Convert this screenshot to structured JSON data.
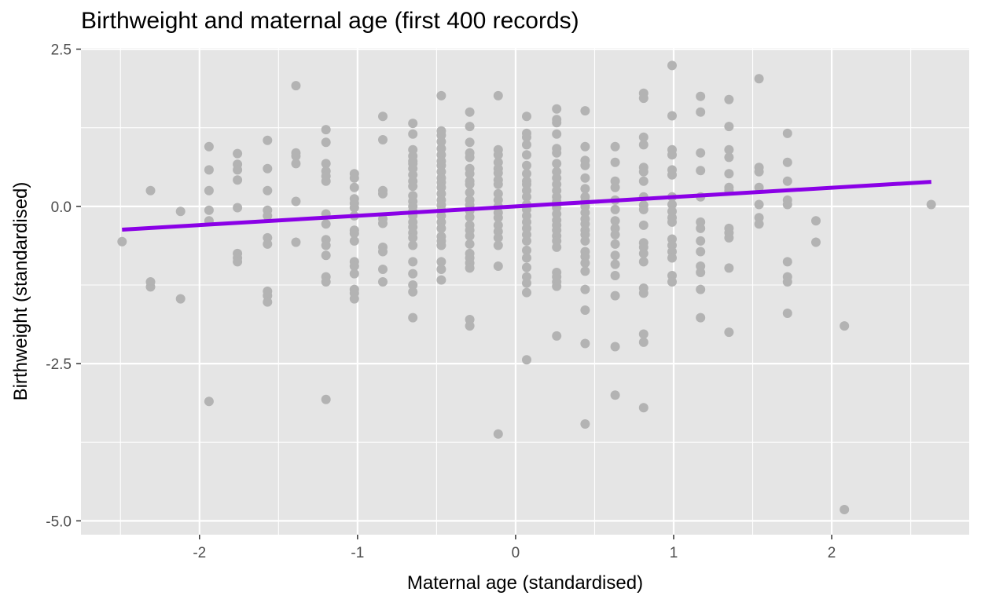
{
  "chart_data": {
    "type": "scatter",
    "title": "Birthweight and maternal age (first 400 records)",
    "xlabel": "Maternal age (standardised)",
    "ylabel": "Birthweight (standardised)",
    "xlim": [
      -2.75,
      2.87
    ],
    "ylim": [
      -5.22,
      2.52
    ],
    "x_ticks": [
      -2,
      -1,
      0,
      1,
      2
    ],
    "x_tick_labels": [
      "-2",
      "-1",
      "0",
      "1",
      "2"
    ],
    "y_ticks": [
      -5.0,
      -2.5,
      0.0,
      2.5
    ],
    "y_tick_labels": [
      "-5.0",
      "-2.5",
      "0.0",
      "2.5"
    ],
    "grid": true,
    "background": "#e5e5e5",
    "grid_color": "#ffffff",
    "point_color": "#b3b3b3",
    "fit_line": {
      "x": [
        -2.49,
        2.63
      ],
      "y": [
        -0.37,
        0.39
      ],
      "color": "#8a00e6"
    },
    "points": [
      [
        -2.49,
        -0.56
      ],
      [
        -2.31,
        0.25
      ],
      [
        -2.31,
        -1.2
      ],
      [
        -2.31,
        -1.28
      ],
      [
        -2.12,
        -0.08
      ],
      [
        -2.12,
        -1.47
      ],
      [
        -1.94,
        0.95
      ],
      [
        -1.94,
        0.58
      ],
      [
        -1.94,
        0.25
      ],
      [
        -1.94,
        -0.06
      ],
      [
        -1.94,
        -0.23
      ],
      [
        -1.94,
        -3.1
      ],
      [
        -1.76,
        0.84
      ],
      [
        -1.76,
        0.67
      ],
      [
        -1.76,
        0.58
      ],
      [
        -1.76,
        0.42
      ],
      [
        -1.76,
        -0.02
      ],
      [
        -1.76,
        -0.75
      ],
      [
        -1.76,
        -0.82
      ],
      [
        -1.76,
        -0.88
      ],
      [
        -1.57,
        1.05
      ],
      [
        -1.57,
        0.6
      ],
      [
        -1.57,
        0.25
      ],
      [
        -1.57,
        -0.06
      ],
      [
        -1.57,
        -0.15
      ],
      [
        -1.57,
        -0.5
      ],
      [
        -1.57,
        -0.6
      ],
      [
        -1.57,
        -1.35
      ],
      [
        -1.57,
        -1.42
      ],
      [
        -1.57,
        -1.52
      ],
      [
        -1.39,
        1.92
      ],
      [
        -1.39,
        0.85
      ],
      [
        -1.39,
        0.8
      ],
      [
        -1.39,
        0.68
      ],
      [
        -1.39,
        0.08
      ],
      [
        -1.39,
        -0.57
      ],
      [
        -1.2,
        1.22
      ],
      [
        -1.2,
        1.02
      ],
      [
        -1.2,
        0.68
      ],
      [
        -1.2,
        0.56
      ],
      [
        -1.2,
        0.48
      ],
      [
        -1.2,
        0.4
      ],
      [
        -1.2,
        -0.12
      ],
      [
        -1.2,
        -0.28
      ],
      [
        -1.2,
        -0.53
      ],
      [
        -1.2,
        -0.62
      ],
      [
        -1.2,
        -0.78
      ],
      [
        -1.2,
        -1.12
      ],
      [
        -1.2,
        -1.2
      ],
      [
        -1.2,
        -3.07
      ],
      [
        -1.02,
        0.52
      ],
      [
        -1.02,
        0.45
      ],
      [
        -1.02,
        0.3
      ],
      [
        -1.02,
        0.12
      ],
      [
        -1.02,
        0.05
      ],
      [
        -1.02,
        -0.02
      ],
      [
        -1.02,
        -0.15
      ],
      [
        -1.02,
        -0.38
      ],
      [
        -1.02,
        -0.43
      ],
      [
        -1.02,
        -0.55
      ],
      [
        -1.02,
        -0.88
      ],
      [
        -1.02,
        -0.95
      ],
      [
        -1.02,
        -1.07
      ],
      [
        -1.02,
        -1.32
      ],
      [
        -1.02,
        -1.38
      ],
      [
        -1.02,
        -1.47
      ],
      [
        -0.84,
        1.43
      ],
      [
        -0.84,
        1.06
      ],
      [
        -0.84,
        0.25
      ],
      [
        -0.84,
        0.2
      ],
      [
        -0.84,
        -0.2
      ],
      [
        -0.84,
        -0.27
      ],
      [
        -0.84,
        -0.65
      ],
      [
        -0.84,
        -0.72
      ],
      [
        -0.84,
        -1.0
      ],
      [
        -0.84,
        -1.2
      ],
      [
        -0.65,
        1.32
      ],
      [
        -0.65,
        1.15
      ],
      [
        -0.65,
        0.9
      ],
      [
        -0.65,
        0.8
      ],
      [
        -0.65,
        0.72
      ],
      [
        -0.65,
        0.68
      ],
      [
        -0.65,
        0.6
      ],
      [
        -0.65,
        0.5
      ],
      [
        -0.65,
        0.4
      ],
      [
        -0.65,
        0.32
      ],
      [
        -0.65,
        0.17
      ],
      [
        -0.65,
        0.08
      ],
      [
        -0.65,
        0.0
      ],
      [
        -0.65,
        -0.08
      ],
      [
        -0.65,
        -0.15
      ],
      [
        -0.65,
        -0.25
      ],
      [
        -0.65,
        -0.33
      ],
      [
        -0.65,
        -0.42
      ],
      [
        -0.65,
        -0.5
      ],
      [
        -0.65,
        -0.62
      ],
      [
        -0.65,
        -0.88
      ],
      [
        -0.65,
        -1.07
      ],
      [
        -0.65,
        -1.25
      ],
      [
        -0.65,
        -1.36
      ],
      [
        -0.65,
        -1.77
      ],
      [
        -0.47,
        1.76
      ],
      [
        -0.47,
        1.2
      ],
      [
        -0.47,
        1.13
      ],
      [
        -0.47,
        1.03
      ],
      [
        -0.47,
        0.92
      ],
      [
        -0.47,
        0.82
      ],
      [
        -0.47,
        0.72
      ],
      [
        -0.47,
        0.65
      ],
      [
        -0.47,
        0.55
      ],
      [
        -0.47,
        0.45
      ],
      [
        -0.47,
        0.38
      ],
      [
        -0.47,
        0.3
      ],
      [
        -0.47,
        0.2
      ],
      [
        -0.47,
        0.1
      ],
      [
        -0.47,
        0.02
      ],
      [
        -0.47,
        -0.06
      ],
      [
        -0.47,
        -0.15
      ],
      [
        -0.47,
        -0.25
      ],
      [
        -0.47,
        -0.35
      ],
      [
        -0.47,
        -0.48
      ],
      [
        -0.47,
        -0.55
      ],
      [
        -0.47,
        -0.62
      ],
      [
        -0.47,
        -0.88
      ],
      [
        -0.47,
        -1.0
      ],
      [
        -0.47,
        -1.17
      ],
      [
        -0.29,
        1.5
      ],
      [
        -0.29,
        1.27
      ],
      [
        -0.29,
        1.02
      ],
      [
        -0.29,
        0.85
      ],
      [
        -0.29,
        0.78
      ],
      [
        -0.29,
        0.6
      ],
      [
        -0.29,
        0.52
      ],
      [
        -0.29,
        0.4
      ],
      [
        -0.29,
        0.35
      ],
      [
        -0.29,
        0.22
      ],
      [
        -0.29,
        0.1
      ],
      [
        -0.29,
        0.02
      ],
      [
        -0.29,
        -0.07
      ],
      [
        -0.29,
        -0.17
      ],
      [
        -0.29,
        -0.3
      ],
      [
        -0.29,
        -0.38
      ],
      [
        -0.29,
        -0.47
      ],
      [
        -0.29,
        -0.6
      ],
      [
        -0.29,
        -0.75
      ],
      [
        -0.29,
        -0.82
      ],
      [
        -0.29,
        -0.9
      ],
      [
        -0.29,
        -0.98
      ],
      [
        -0.29,
        -1.8
      ],
      [
        -0.29,
        -1.9
      ],
      [
        -0.11,
        1.76
      ],
      [
        -0.11,
        0.9
      ],
      [
        -0.11,
        0.82
      ],
      [
        -0.11,
        0.7
      ],
      [
        -0.11,
        0.6
      ],
      [
        -0.11,
        0.53
      ],
      [
        -0.11,
        0.42
      ],
      [
        -0.11,
        0.35
      ],
      [
        -0.11,
        0.2
      ],
      [
        -0.11,
        0.1
      ],
      [
        -0.11,
        0.0
      ],
      [
        -0.11,
        -0.1
      ],
      [
        -0.11,
        -0.18
      ],
      [
        -0.11,
        -0.3
      ],
      [
        -0.11,
        -0.4
      ],
      [
        -0.11,
        -0.5
      ],
      [
        -0.11,
        -0.62
      ],
      [
        -0.11,
        -0.95
      ],
      [
        -0.11,
        -3.62
      ],
      [
        0.07,
        1.43
      ],
      [
        0.07,
        1.16
      ],
      [
        0.07,
        1.1
      ],
      [
        0.07,
        0.98
      ],
      [
        0.07,
        0.82
      ],
      [
        0.07,
        0.65
      ],
      [
        0.07,
        0.52
      ],
      [
        0.07,
        0.4
      ],
      [
        0.07,
        0.35
      ],
      [
        0.07,
        0.25
      ],
      [
        0.07,
        0.15
      ],
      [
        0.07,
        0.03
      ],
      [
        0.07,
        -0.05
      ],
      [
        0.07,
        -0.15
      ],
      [
        0.07,
        -0.25
      ],
      [
        0.07,
        -0.35
      ],
      [
        0.07,
        -0.45
      ],
      [
        0.07,
        -0.55
      ],
      [
        0.07,
        -0.7
      ],
      [
        0.07,
        -0.82
      ],
      [
        0.07,
        -0.97
      ],
      [
        0.07,
        -1.12
      ],
      [
        0.07,
        -1.22
      ],
      [
        0.07,
        -1.37
      ],
      [
        0.07,
        -2.44
      ],
      [
        0.26,
        1.55
      ],
      [
        0.26,
        1.38
      ],
      [
        0.26,
        1.33
      ],
      [
        0.26,
        1.15
      ],
      [
        0.26,
        0.92
      ],
      [
        0.26,
        0.85
      ],
      [
        0.26,
        0.68
      ],
      [
        0.26,
        0.55
      ],
      [
        0.26,
        0.45
      ],
      [
        0.26,
        0.35
      ],
      [
        0.26,
        0.25
      ],
      [
        0.26,
        0.15
      ],
      [
        0.26,
        0.08
      ],
      [
        0.26,
        -0.02
      ],
      [
        0.26,
        -0.12
      ],
      [
        0.26,
        -0.22
      ],
      [
        0.26,
        -0.3
      ],
      [
        0.26,
        -0.38
      ],
      [
        0.26,
        -0.47
      ],
      [
        0.26,
        -0.55
      ],
      [
        0.26,
        -0.65
      ],
      [
        0.26,
        -1.05
      ],
      [
        0.26,
        -1.12
      ],
      [
        0.26,
        -1.2
      ],
      [
        0.26,
        -1.27
      ],
      [
        0.26,
        -2.06
      ],
      [
        0.44,
        1.52
      ],
      [
        0.44,
        0.95
      ],
      [
        0.44,
        0.73
      ],
      [
        0.44,
        0.65
      ],
      [
        0.44,
        0.45
      ],
      [
        0.44,
        0.28
      ],
      [
        0.44,
        0.15
      ],
      [
        0.44,
        0.08
      ],
      [
        0.44,
        0.0
      ],
      [
        0.44,
        -0.1
      ],
      [
        0.44,
        -0.2
      ],
      [
        0.44,
        -0.28
      ],
      [
        0.44,
        -0.38
      ],
      [
        0.44,
        -0.45
      ],
      [
        0.44,
        -0.55
      ],
      [
        0.44,
        -0.72
      ],
      [
        0.44,
        -0.8
      ],
      [
        0.44,
        -0.9
      ],
      [
        0.44,
        -1.03
      ],
      [
        0.44,
        -1.32
      ],
      [
        0.44,
        -1.65
      ],
      [
        0.44,
        -2.18
      ],
      [
        0.44,
        -3.46
      ],
      [
        0.63,
        0.95
      ],
      [
        0.63,
        0.7
      ],
      [
        0.63,
        0.4
      ],
      [
        0.63,
        0.3
      ],
      [
        0.63,
        0.1
      ],
      [
        0.63,
        -0.05
      ],
      [
        0.63,
        -0.23
      ],
      [
        0.63,
        -0.35
      ],
      [
        0.63,
        -0.45
      ],
      [
        0.63,
        -0.6
      ],
      [
        0.63,
        -0.78
      ],
      [
        0.63,
        -0.92
      ],
      [
        0.63,
        -1.1
      ],
      [
        0.63,
        -1.42
      ],
      [
        0.63,
        -2.23
      ],
      [
        0.63,
        -3.0
      ],
      [
        0.81,
        1.8
      ],
      [
        0.81,
        1.72
      ],
      [
        0.81,
        1.1
      ],
      [
        0.81,
        0.98
      ],
      [
        0.81,
        0.62
      ],
      [
        0.81,
        0.55
      ],
      [
        0.81,
        0.4
      ],
      [
        0.81,
        0.15
      ],
      [
        0.81,
        0.02
      ],
      [
        0.81,
        -0.05
      ],
      [
        0.81,
        -0.3
      ],
      [
        0.81,
        -0.58
      ],
      [
        0.81,
        -0.65
      ],
      [
        0.81,
        -0.75
      ],
      [
        0.81,
        -0.88
      ],
      [
        0.81,
        -1.3
      ],
      [
        0.81,
        -1.38
      ],
      [
        0.81,
        -2.03
      ],
      [
        0.81,
        -2.16
      ],
      [
        0.81,
        -3.2
      ],
      [
        0.99,
        2.24
      ],
      [
        0.99,
        1.44
      ],
      [
        0.99,
        0.9
      ],
      [
        0.99,
        0.82
      ],
      [
        0.99,
        0.58
      ],
      [
        0.99,
        0.5
      ],
      [
        0.99,
        0.15
      ],
      [
        0.99,
        0.03
      ],
      [
        0.99,
        -0.08
      ],
      [
        0.99,
        -0.18
      ],
      [
        0.99,
        -0.25
      ],
      [
        0.99,
        -0.52
      ],
      [
        0.99,
        -0.62
      ],
      [
        0.99,
        -0.72
      ],
      [
        0.99,
        -0.82
      ],
      [
        0.99,
        -1.1
      ],
      [
        0.99,
        -1.2
      ],
      [
        1.17,
        1.75
      ],
      [
        1.17,
        1.5
      ],
      [
        1.17,
        0.85
      ],
      [
        1.17,
        0.57
      ],
      [
        1.17,
        0.15
      ],
      [
        1.17,
        -0.25
      ],
      [
        1.17,
        -0.35
      ],
      [
        1.17,
        -0.55
      ],
      [
        1.17,
        -0.72
      ],
      [
        1.17,
        -0.95
      ],
      [
        1.17,
        -1.05
      ],
      [
        1.17,
        -1.32
      ],
      [
        1.17,
        -1.77
      ],
      [
        1.35,
        1.7
      ],
      [
        1.35,
        1.27
      ],
      [
        1.35,
        0.9
      ],
      [
        1.35,
        0.78
      ],
      [
        1.35,
        0.52
      ],
      [
        1.35,
        0.3
      ],
      [
        1.35,
        0.25
      ],
      [
        1.35,
        -0.35
      ],
      [
        1.35,
        -0.42
      ],
      [
        1.35,
        -0.5
      ],
      [
        1.35,
        -0.98
      ],
      [
        1.35,
        -2.0
      ],
      [
        1.54,
        2.03
      ],
      [
        1.54,
        0.62
      ],
      [
        1.54,
        0.55
      ],
      [
        1.54,
        0.3
      ],
      [
        1.54,
        0.03
      ],
      [
        1.54,
        -0.18
      ],
      [
        1.54,
        -0.28
      ],
      [
        1.72,
        1.16
      ],
      [
        1.72,
        0.7
      ],
      [
        1.72,
        0.4
      ],
      [
        1.72,
        0.1
      ],
      [
        1.72,
        0.03
      ],
      [
        1.72,
        -0.88
      ],
      [
        1.72,
        -1.12
      ],
      [
        1.72,
        -1.2
      ],
      [
        1.72,
        -1.7
      ],
      [
        1.9,
        -0.23
      ],
      [
        1.9,
        -0.57
      ],
      [
        2.08,
        -1.9
      ],
      [
        2.08,
        -4.82
      ],
      [
        2.63,
        0.03
      ]
    ]
  }
}
